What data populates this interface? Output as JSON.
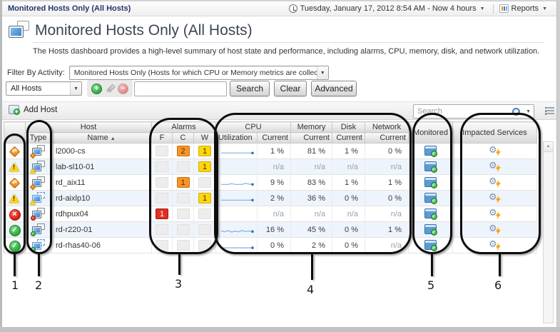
{
  "breadcrumb": {
    "title": "Monitored Hosts Only (All Hosts)"
  },
  "topbar": {
    "time_range": "Tuesday, January 17, 2012 8:54 AM - Now 4 hours",
    "reports_label": "Reports"
  },
  "header": {
    "title": "Monitored Hosts Only (All Hosts)",
    "description": "The Hosts dashboard provides a high-level summary of host state and performance, including alarms, CPU, memory, disk, and network utilization."
  },
  "filter": {
    "label": "Filter By Activity:",
    "selected": "Monitored Hosts Only (Hosts for which CPU or Memory metrics are collected)"
  },
  "toolbar": {
    "scope_selected": "All Hosts",
    "search_button": "Search",
    "clear_button": "Clear",
    "advanced_button": "Advanced"
  },
  "table_toolbar": {
    "add_host_label": "Add Host",
    "search_placeholder": "Search"
  },
  "table": {
    "groups": {
      "host": "Host",
      "alarms": "Alarms",
      "cpu": "CPU",
      "memory": "Memory",
      "disk": "Disk",
      "network": "Network",
      "monitored": "Monitored",
      "impacted": "Impacted Services"
    },
    "columns": {
      "type": "Type",
      "name": "Name",
      "fatal": "F",
      "critical": "C",
      "warning": "W",
      "utilization": "Utilization",
      "current": "Current"
    },
    "rows": [
      {
        "name": "l2000-cs",
        "status": "critical",
        "virtual": false,
        "f": "",
        "c": "2",
        "w": "1",
        "spark": [
          3,
          3,
          3,
          3,
          3,
          3,
          3,
          3,
          3,
          3
        ],
        "cpu": "1 %",
        "memory": "81 %",
        "disk": "1 %",
        "network": "0 %"
      },
      {
        "name": "lab-sl10-01",
        "status": "warning",
        "virtual": false,
        "f": "",
        "c": "",
        "w": "1",
        "spark": null,
        "cpu": "n/a",
        "memory": "n/a",
        "disk": "n/a",
        "network": "n/a"
      },
      {
        "name": "rd_aix11",
        "status": "critical",
        "virtual": false,
        "f": "",
        "c": "1",
        "w": "",
        "spark": [
          3,
          3,
          3,
          3.6,
          3,
          3,
          3,
          3.8,
          3.2,
          3
        ],
        "cpu": "9 %",
        "memory": "83 %",
        "disk": "1 %",
        "network": "1 %"
      },
      {
        "name": "rd-aixlp10",
        "status": "warning",
        "virtual": true,
        "f": "",
        "c": "",
        "w": "1",
        "spark": [
          3,
          3,
          3,
          3,
          3,
          3,
          3,
          3,
          3,
          3
        ],
        "cpu": "2 %",
        "memory": "36 %",
        "disk": "0 %",
        "network": "0 %"
      },
      {
        "name": "rdhpux04",
        "status": "fatal",
        "virtual": false,
        "f": "1",
        "c": "",
        "w": "",
        "spark": null,
        "cpu": "n/a",
        "memory": "n/a",
        "disk": "n/a",
        "network": "n/a"
      },
      {
        "name": "rd-r220-01",
        "status": "normal",
        "virtual": false,
        "f": "",
        "c": "",
        "w": "",
        "spark": [
          3.6,
          2.8,
          3.8,
          2.6,
          3.4,
          2.8,
          3.8,
          3,
          3.4,
          3
        ],
        "cpu": "16 %",
        "memory": "45 %",
        "disk": "0 %",
        "network": "1 %"
      },
      {
        "name": "rd-rhas40-06",
        "status": "normal",
        "virtual": true,
        "f": "",
        "c": "",
        "w": "",
        "spark": [
          2.6,
          2.6,
          2.6,
          2.6,
          2.6,
          2.6,
          2.6,
          2.6,
          2.6,
          2.6
        ],
        "cpu": "0 %",
        "memory": "2 %",
        "disk": "0 %",
        "network": "n/a"
      }
    ]
  },
  "callouts": [
    {
      "label": "1"
    },
    {
      "label": "2"
    },
    {
      "label": "3"
    },
    {
      "label": "4"
    },
    {
      "label": "5"
    },
    {
      "label": "6"
    }
  ],
  "colors": {
    "alarm_fatal": "#e03023",
    "alarm_critical": "#f79428",
    "alarm_warning": "#ffd60a",
    "sparkline": "#7fb0e0",
    "sparkline_dot": "#2f6fba",
    "row_alt": "#eef4fb"
  }
}
